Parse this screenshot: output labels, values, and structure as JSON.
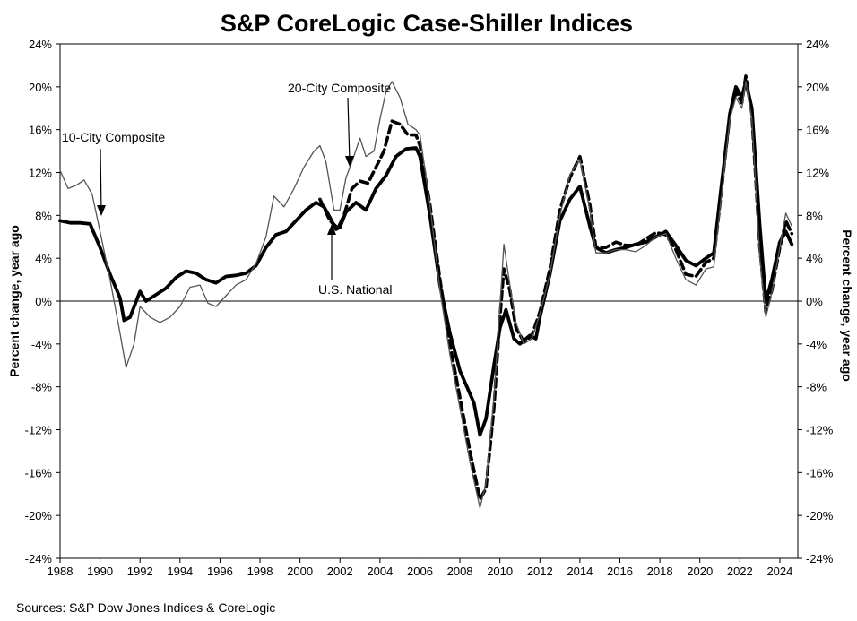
{
  "chart_data": {
    "type": "line",
    "title": "S&P CoreLogic Case-Shiller Indices",
    "ylabel_left": "Percent change, year ago",
    "ylabel_right": "Percent change, year ago",
    "source": "Sources:  S&P Dow Jones Indices & CoreLogic",
    "xlim": [
      1988,
      2024.9
    ],
    "ylim": [
      -24,
      24
    ],
    "x_ticks": [
      1988,
      1990,
      1992,
      1994,
      1996,
      1998,
      2000,
      2002,
      2004,
      2006,
      2008,
      2010,
      2012,
      2014,
      2016,
      2018,
      2020,
      2022,
      2024
    ],
    "y_ticks": [
      -24,
      -20,
      -16,
      -12,
      -8,
      -4,
      0,
      4,
      8,
      12,
      16,
      20,
      24
    ],
    "y_tick_format": "percent",
    "zero_line": true,
    "grid": false,
    "annotations": [
      {
        "text": "10-City Composite",
        "x": 1990.3,
        "y": 8.0
      },
      {
        "text": "20-City Composite",
        "x": 2002.2,
        "y": 12.8
      },
      {
        "text": "U.S. National",
        "x": 2001.6,
        "y": 7.0
      }
    ],
    "series": [
      {
        "name": "U.S. National",
        "style": "thick-solid",
        "color": "#000000",
        "points": [
          [
            1988,
            7.5
          ],
          [
            1988.5,
            7.3
          ],
          [
            1989,
            7.3
          ],
          [
            1989.5,
            7.2
          ],
          [
            1990,
            5.0
          ],
          [
            1990.5,
            2.5
          ],
          [
            1991,
            0.3
          ],
          [
            1991.2,
            -1.8
          ],
          [
            1991.5,
            -1.5
          ],
          [
            1992,
            0.9
          ],
          [
            1992.3,
            0.0
          ],
          [
            1992.8,
            0.6
          ],
          [
            1993.3,
            1.2
          ],
          [
            1993.8,
            2.2
          ],
          [
            1994.3,
            2.8
          ],
          [
            1994.8,
            2.6
          ],
          [
            1995.3,
            2.0
          ],
          [
            1995.8,
            1.7
          ],
          [
            1996.3,
            2.3
          ],
          [
            1996.8,
            2.4
          ],
          [
            1997.3,
            2.6
          ],
          [
            1997.8,
            3.3
          ],
          [
            1998.3,
            5.0
          ],
          [
            1998.8,
            6.2
          ],
          [
            1999.3,
            6.5
          ],
          [
            1999.8,
            7.5
          ],
          [
            2000.3,
            8.5
          ],
          [
            2000.8,
            9.2
          ],
          [
            2001.2,
            8.8
          ],
          [
            2001.5,
            7.8
          ],
          [
            2001.8,
            6.7
          ],
          [
            2002.0,
            6.9
          ],
          [
            2002.3,
            8.3
          ],
          [
            2002.8,
            9.2
          ],
          [
            2003.3,
            8.5
          ],
          [
            2003.8,
            10.5
          ],
          [
            2004.3,
            11.7
          ],
          [
            2004.8,
            13.5
          ],
          [
            2005.3,
            14.2
          ],
          [
            2005.8,
            14.3
          ],
          [
            2006.0,
            13.5
          ],
          [
            2006.5,
            8.0
          ],
          [
            2007,
            1.5
          ],
          [
            2007.5,
            -3.0
          ],
          [
            2008,
            -6.5
          ],
          [
            2008.3,
            -7.8
          ],
          [
            2008.7,
            -9.5
          ],
          [
            2009,
            -12.5
          ],
          [
            2009.3,
            -11.0
          ],
          [
            2009.7,
            -6.0
          ],
          [
            2010,
            -2.5
          ],
          [
            2010.3,
            -0.8
          ],
          [
            2010.7,
            -3.5
          ],
          [
            2011,
            -4.0
          ],
          [
            2011.5,
            -3.2
          ],
          [
            2011.8,
            -3.5
          ],
          [
            2012,
            -1.5
          ],
          [
            2012.5,
            2.5
          ],
          [
            2013,
            7.5
          ],
          [
            2013.5,
            9.5
          ],
          [
            2014,
            10.7
          ],
          [
            2014.5,
            7.0
          ],
          [
            2014.8,
            5.0
          ],
          [
            2015.3,
            4.5
          ],
          [
            2015.8,
            4.8
          ],
          [
            2016.3,
            5.0
          ],
          [
            2016.8,
            5.3
          ],
          [
            2017.3,
            5.5
          ],
          [
            2017.8,
            6.0
          ],
          [
            2018.3,
            6.5
          ],
          [
            2018.8,
            5.2
          ],
          [
            2019.3,
            3.8
          ],
          [
            2019.8,
            3.3
          ],
          [
            2020.3,
            4.0
          ],
          [
            2020.7,
            4.5
          ],
          [
            2021,
            9.5
          ],
          [
            2021.5,
            17.5
          ],
          [
            2021.8,
            20.0
          ],
          [
            2022.1,
            19.0
          ],
          [
            2022.3,
            20.5
          ],
          [
            2022.6,
            18.0
          ],
          [
            2023,
            7.0
          ],
          [
            2023.3,
            0.0
          ],
          [
            2023.6,
            2.0
          ],
          [
            2024.0,
            5.5
          ],
          [
            2024.3,
            6.5
          ],
          [
            2024.6,
            5.3
          ]
        ]
      },
      {
        "name": "20-City Composite",
        "style": "dashed",
        "color": "#000000",
        "points": [
          [
            2001.0,
            9.5
          ],
          [
            2001.5,
            7.5
          ],
          [
            2001.9,
            6.8
          ],
          [
            2002.2,
            8.0
          ],
          [
            2002.6,
            10.5
          ],
          [
            2003.0,
            11.2
          ],
          [
            2003.4,
            11.0
          ],
          [
            2003.8,
            12.5
          ],
          [
            2004.2,
            14.0
          ],
          [
            2004.6,
            16.8
          ],
          [
            2005.0,
            16.5
          ],
          [
            2005.4,
            15.5
          ],
          [
            2005.8,
            15.5
          ],
          [
            2006.0,
            14.5
          ],
          [
            2006.5,
            9.0
          ],
          [
            2007,
            2.0
          ],
          [
            2007.5,
            -4.0
          ],
          [
            2008,
            -9.0
          ],
          [
            2008.5,
            -14.0
          ],
          [
            2009,
            -18.5
          ],
          [
            2009.3,
            -17.5
          ],
          [
            2009.7,
            -10.0
          ],
          [
            2010,
            -1.5
          ],
          [
            2010.2,
            3.0
          ],
          [
            2010.5,
            1.0
          ],
          [
            2010.8,
            -2.5
          ],
          [
            2011.2,
            -3.8
          ],
          [
            2011.6,
            -3.2
          ],
          [
            2012,
            -1.0
          ],
          [
            2012.5,
            3.0
          ],
          [
            2013,
            8.5
          ],
          [
            2013.5,
            11.5
          ],
          [
            2014,
            13.5
          ],
          [
            2014.5,
            9.0
          ],
          [
            2014.8,
            5.0
          ],
          [
            2015.3,
            5.0
          ],
          [
            2015.8,
            5.5
          ],
          [
            2016.3,
            5.2
          ],
          [
            2016.8,
            5.2
          ],
          [
            2017.3,
            5.8
          ],
          [
            2017.8,
            6.4
          ],
          [
            2018.3,
            6.2
          ],
          [
            2018.8,
            4.8
          ],
          [
            2019.3,
            2.5
          ],
          [
            2019.8,
            2.3
          ],
          [
            2020.3,
            3.6
          ],
          [
            2020.7,
            4.0
          ],
          [
            2021,
            9.0
          ],
          [
            2021.5,
            17.5
          ],
          [
            2021.8,
            19.5
          ],
          [
            2022.1,
            18.5
          ],
          [
            2022.3,
            21.0
          ],
          [
            2022.6,
            17.5
          ],
          [
            2023,
            5.0
          ],
          [
            2023.3,
            -1.0
          ],
          [
            2023.6,
            1.0
          ],
          [
            2024,
            5.0
          ],
          [
            2024.3,
            7.5
          ],
          [
            2024.6,
            6.3
          ]
        ]
      },
      {
        "name": "10-City Composite",
        "style": "thin-solid",
        "color": "#555555",
        "points": [
          [
            1988,
            12.2
          ],
          [
            1988.4,
            10.5
          ],
          [
            1988.8,
            10.8
          ],
          [
            1989.2,
            11.3
          ],
          [
            1989.6,
            10.0
          ],
          [
            1990,
            6.5
          ],
          [
            1990.5,
            2.0
          ],
          [
            1991,
            -3.0
          ],
          [
            1991.3,
            -6.2
          ],
          [
            1991.7,
            -4.0
          ],
          [
            1992,
            -0.5
          ],
          [
            1992.5,
            -1.5
          ],
          [
            1993,
            -2.0
          ],
          [
            1993.5,
            -1.5
          ],
          [
            1994,
            -0.5
          ],
          [
            1994.5,
            1.3
          ],
          [
            1995,
            1.5
          ],
          [
            1995.4,
            -0.2
          ],
          [
            1995.8,
            -0.5
          ],
          [
            1996.3,
            0.5
          ],
          [
            1996.8,
            1.5
          ],
          [
            1997.3,
            2.0
          ],
          [
            1997.8,
            3.5
          ],
          [
            1998.3,
            6.0
          ],
          [
            1998.7,
            9.8
          ],
          [
            1999.2,
            8.8
          ],
          [
            1999.7,
            10.5
          ],
          [
            2000.2,
            12.5
          ],
          [
            2000.7,
            14.0
          ],
          [
            2001,
            14.5
          ],
          [
            2001.3,
            13.0
          ],
          [
            2001.7,
            8.5
          ],
          [
            2002,
            8.5
          ],
          [
            2002.3,
            11.5
          ],
          [
            2002.6,
            13.0
          ],
          [
            2003,
            15.2
          ],
          [
            2003.3,
            13.5
          ],
          [
            2003.7,
            14.0
          ],
          [
            2004.0,
            17.0
          ],
          [
            2004.3,
            19.5
          ],
          [
            2004.6,
            20.5
          ],
          [
            2005.0,
            19.0
          ],
          [
            2005.4,
            16.5
          ],
          [
            2005.8,
            16.0
          ],
          [
            2006,
            15.5
          ],
          [
            2006.5,
            9.0
          ],
          [
            2007,
            1.0
          ],
          [
            2007.5,
            -5.0
          ],
          [
            2008,
            -10.0
          ],
          [
            2008.5,
            -15.0
          ],
          [
            2009,
            -19.3
          ],
          [
            2009.3,
            -17.0
          ],
          [
            2009.7,
            -9.0
          ],
          [
            2010,
            -0.5
          ],
          [
            2010.2,
            5.3
          ],
          [
            2010.5,
            1.5
          ],
          [
            2010.8,
            -2.0
          ],
          [
            2011.2,
            -4.0
          ],
          [
            2011.6,
            -3.5
          ],
          [
            2012,
            -1.2
          ],
          [
            2012.5,
            2.5
          ],
          [
            2013,
            8.0
          ],
          [
            2013.5,
            11.8
          ],
          [
            2014,
            13.2
          ],
          [
            2014.5,
            8.5
          ],
          [
            2014.8,
            4.5
          ],
          [
            2015.3,
            4.5
          ],
          [
            2015.8,
            4.8
          ],
          [
            2016.3,
            4.8
          ],
          [
            2016.8,
            4.6
          ],
          [
            2017.3,
            5.2
          ],
          [
            2017.8,
            6.0
          ],
          [
            2018.3,
            6.3
          ],
          [
            2018.8,
            4.0
          ],
          [
            2019.3,
            2.0
          ],
          [
            2019.8,
            1.5
          ],
          [
            2020.3,
            3.0
          ],
          [
            2020.7,
            3.2
          ],
          [
            2021,
            8.5
          ],
          [
            2021.5,
            17.0
          ],
          [
            2021.8,
            19.0
          ],
          [
            2022.1,
            18.0
          ],
          [
            2022.3,
            20.5
          ],
          [
            2022.6,
            17.0
          ],
          [
            2023,
            4.0
          ],
          [
            2023.3,
            -1.5
          ],
          [
            2023.6,
            0.8
          ],
          [
            2024,
            5.0
          ],
          [
            2024.3,
            8.2
          ],
          [
            2024.6,
            7.0
          ]
        ]
      }
    ]
  }
}
